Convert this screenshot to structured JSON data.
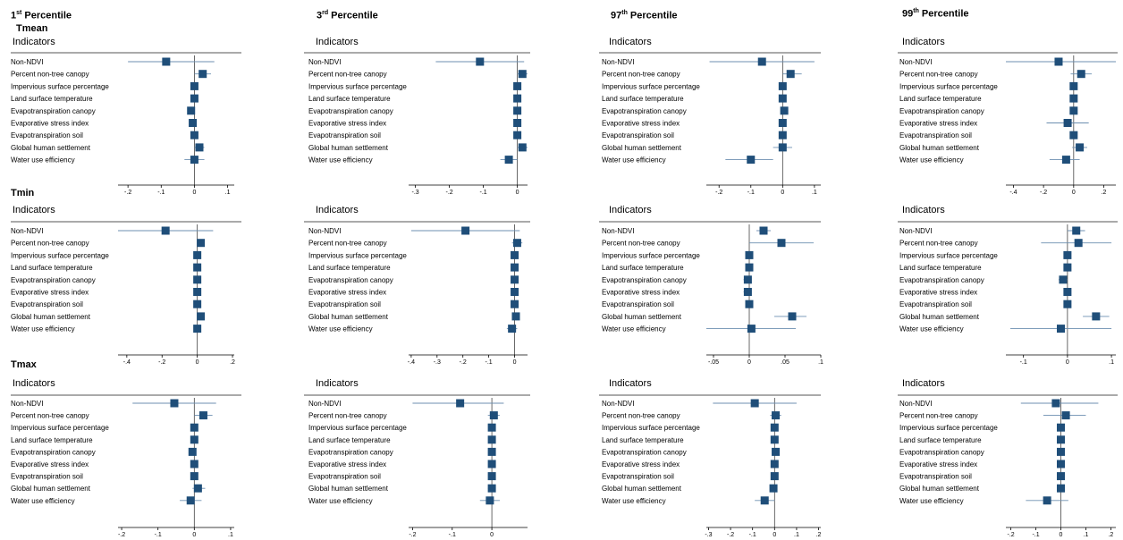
{
  "percentiles": [
    {
      "base": "1",
      "suffix": "st",
      "rest": " Percentile"
    },
    {
      "base": "3",
      "suffix": "rd",
      "rest": " Percentile"
    },
    {
      "base": "97",
      "suffix": "th",
      "rest": " Percentile"
    },
    {
      "base": "99",
      "suffix": "th",
      "rest": " Percentile"
    }
  ],
  "row_labels": [
    "Tmean",
    "Tmin",
    "Tmax"
  ],
  "panel_header": "Indicators",
  "indicators": [
    "Non-NDVI",
    "Percent non-tree canopy",
    "Impervious surface percentage",
    "Land surface temperature",
    "Evapotranspiration canopy",
    "Evaporative stress index",
    "Evapotranspiration soil",
    "Global human settlement",
    "Water use efficiency"
  ],
  "colors": {
    "marker": "#1f4e79",
    "ci_line": "#6d8fb0",
    "axis": "#000000",
    "header_rule": "#555555",
    "zero_line": "#444444"
  },
  "chart_data": [
    {
      "type": "forest",
      "row": "Tmean",
      "col": "1st Percentile",
      "xlim": [
        -0.23,
        0.12
      ],
      "ticks": [
        -0.2,
        -0.1,
        0,
        0.1
      ],
      "tick_labels": [
        "-.2",
        "-.1",
        "0",
        ".1"
      ],
      "estimates": [
        -0.085,
        0.025,
        0.0,
        0.0,
        -0.01,
        -0.005,
        0.0,
        0.015,
        0.0
      ],
      "ci_lower": [
        -0.2,
        0.0,
        -0.01,
        -0.01,
        -0.02,
        -0.015,
        -0.01,
        0.0,
        -0.03
      ],
      "ci_upper": [
        0.06,
        0.05,
        0.01,
        0.01,
        0.0,
        0.005,
        0.01,
        0.03,
        0.03
      ]
    },
    {
      "type": "forest",
      "row": "Tmean",
      "col": "3rd Percentile",
      "xlim": [
        -0.32,
        0.03
      ],
      "ticks": [
        -0.3,
        -0.2,
        -0.1,
        0
      ],
      "tick_labels": [
        "-.3",
        "-.2",
        "-.1",
        "0"
      ],
      "estimates": [
        -0.11,
        0.015,
        0.0,
        0.0,
        0.0,
        0.0,
        0.0,
        0.015,
        -0.025
      ],
      "ci_lower": [
        -0.24,
        0.0,
        -0.01,
        -0.01,
        -0.01,
        -0.01,
        -0.01,
        0.0,
        -0.05
      ],
      "ci_upper": [
        0.02,
        0.03,
        0.01,
        0.01,
        0.01,
        0.01,
        0.01,
        0.03,
        0.0
      ]
    },
    {
      "type": "forest",
      "row": "Tmean",
      "col": "97th Percentile",
      "xlim": [
        -0.24,
        0.12
      ],
      "ticks": [
        -0.2,
        -0.1,
        0,
        0.1
      ],
      "tick_labels": [
        "-.2",
        "-.1",
        "0",
        ".1"
      ],
      "estimates": [
        -0.065,
        0.025,
        0.0,
        0.0,
        0.005,
        0.0,
        0.0,
        0.0,
        -0.1
      ],
      "ci_lower": [
        -0.23,
        0.0,
        -0.005,
        -0.005,
        -0.005,
        -0.01,
        -0.005,
        -0.03,
        -0.18
      ],
      "ci_upper": [
        0.1,
        0.06,
        0.005,
        0.005,
        0.015,
        0.01,
        0.005,
        0.03,
        -0.03
      ]
    },
    {
      "type": "forest",
      "row": "Tmean",
      "col": "99th Percentile",
      "xlim": [
        -0.45,
        0.28
      ],
      "ticks": [
        -0.4,
        -0.2,
        0,
        0.2
      ],
      "tick_labels": [
        "-.4",
        "-.2",
        "0",
        ".2"
      ],
      "estimates": [
        -0.1,
        0.05,
        0.0,
        0.0,
        0.0,
        -0.04,
        0.0,
        0.04,
        -0.05
      ],
      "ci_lower": [
        -0.45,
        -0.02,
        -0.01,
        -0.01,
        -0.01,
        -0.18,
        -0.02,
        -0.01,
        -0.16
      ],
      "ci_upper": [
        0.28,
        0.12,
        0.01,
        0.01,
        0.01,
        0.1,
        0.02,
        0.09,
        0.04
      ]
    },
    {
      "type": "forest",
      "row": "Tmin",
      "col": "1st Percentile",
      "xlim": [
        -0.45,
        0.21
      ],
      "ticks": [
        -0.4,
        -0.2,
        0,
        0.2
      ],
      "tick_labels": [
        "-.4",
        "-.2",
        "0",
        ".2"
      ],
      "estimates": [
        -0.18,
        0.02,
        0.0,
        0.0,
        0.0,
        0.0,
        0.0,
        0.02,
        0.0
      ],
      "ci_lower": [
        -0.45,
        0.0,
        -0.01,
        -0.01,
        -0.01,
        -0.01,
        -0.01,
        0.0,
        -0.02
      ],
      "ci_upper": [
        0.09,
        0.04,
        0.01,
        0.01,
        0.01,
        0.01,
        0.01,
        0.04,
        0.02
      ]
    },
    {
      "type": "forest",
      "row": "Tmin",
      "col": "3rd Percentile",
      "xlim": [
        -0.41,
        0.05
      ],
      "ticks": [
        -0.4,
        -0.3,
        -0.2,
        -0.1,
        0
      ],
      "tick_labels": [
        "-.4",
        "-.3",
        "-.2",
        "-.1",
        "0"
      ],
      "estimates": [
        -0.19,
        0.01,
        0.0,
        0.0,
        0.0,
        0.0,
        0.0,
        0.005,
        -0.01
      ],
      "ci_lower": [
        -0.4,
        -0.01,
        -0.01,
        -0.01,
        -0.01,
        -0.01,
        -0.01,
        -0.01,
        -0.03
      ],
      "ci_upper": [
        0.02,
        0.03,
        0.01,
        0.01,
        0.01,
        0.01,
        0.01,
        0.02,
        0.01
      ]
    },
    {
      "type": "forest",
      "row": "Tmin",
      "col": "97th Percentile",
      "xlim": [
        -0.06,
        0.1
      ],
      "ticks": [
        -0.05,
        0,
        0.05,
        0.1
      ],
      "tick_labels": [
        "-.05",
        "0",
        ".05",
        ".1"
      ],
      "estimates": [
        0.02,
        0.045,
        0.0,
        0.0,
        -0.002,
        -0.002,
        0.0,
        0.06,
        0.003
      ],
      "ci_lower": [
        0.01,
        0.0,
        -0.005,
        -0.005,
        -0.008,
        -0.008,
        -0.005,
        0.035,
        -0.06
      ],
      "ci_upper": [
        0.03,
        0.09,
        0.005,
        0.005,
        0.003,
        0.003,
        0.005,
        0.08,
        0.065
      ]
    },
    {
      "type": "forest",
      "row": "Tmin",
      "col": "99th Percentile",
      "xlim": [
        -0.14,
        0.11
      ],
      "ticks": [
        -0.1,
        0,
        0.1
      ],
      "tick_labels": [
        "-.1",
        "0",
        ".1"
      ],
      "estimates": [
        0.02,
        0.025,
        0.0,
        0.0,
        -0.01,
        0.0,
        0.0,
        0.065,
        -0.015
      ],
      "ci_lower": [
        0.0,
        -0.06,
        -0.005,
        -0.005,
        -0.02,
        -0.005,
        -0.005,
        0.035,
        -0.13
      ],
      "ci_upper": [
        0.04,
        0.1,
        0.005,
        0.005,
        0.0,
        0.005,
        0.005,
        0.095,
        0.1
      ]
    },
    {
      "type": "forest",
      "row": "Tmax",
      "col": "1st Percentile",
      "xlim": [
        -0.21,
        0.11
      ],
      "ticks": [
        -0.2,
        -0.1,
        0,
        0.1
      ],
      "tick_labels": [
        "-.2",
        "-.1",
        "0",
        ".1"
      ],
      "estimates": [
        -0.055,
        0.025,
        0.0,
        0.0,
        -0.005,
        0.0,
        0.0,
        0.01,
        -0.01
      ],
      "ci_lower": [
        -0.17,
        0.0,
        -0.01,
        -0.01,
        -0.015,
        -0.01,
        -0.01,
        -0.005,
        -0.04
      ],
      "ci_upper": [
        0.06,
        0.05,
        0.01,
        0.01,
        0.005,
        0.01,
        0.01,
        0.03,
        0.02
      ]
    },
    {
      "type": "forest",
      "row": "Tmax",
      "col": "3rd Percentile",
      "xlim": [
        -0.21,
        0.09
      ],
      "ticks": [
        -0.2,
        -0.1,
        0
      ],
      "tick_labels": [
        "-.2",
        "-.1",
        "0"
      ],
      "estimates": [
        -0.08,
        0.005,
        0.0,
        0.0,
        0.0,
        0.0,
        0.0,
        0.0,
        -0.005
      ],
      "ci_lower": [
        -0.2,
        -0.01,
        -0.005,
        -0.005,
        -0.005,
        -0.005,
        -0.005,
        -0.01,
        -0.03
      ],
      "ci_upper": [
        0.03,
        0.02,
        0.005,
        0.005,
        0.005,
        0.005,
        0.005,
        0.01,
        0.02
      ]
    },
    {
      "type": "forest",
      "row": "Tmax",
      "col": "97th Percentile",
      "xlim": [
        -0.31,
        0.21
      ],
      "ticks": [
        -0.3,
        -0.2,
        -0.1,
        0,
        0.1,
        0.2
      ],
      "tick_labels": [
        "-.3",
        "-.2",
        "-.1",
        "0",
        ".1",
        ".2"
      ],
      "estimates": [
        -0.09,
        0.005,
        0.0,
        0.0,
        0.005,
        0.0,
        0.0,
        -0.005,
        -0.045
      ],
      "ci_lower": [
        -0.28,
        -0.02,
        -0.01,
        -0.01,
        -0.005,
        -0.01,
        -0.01,
        -0.02,
        -0.09
      ],
      "ci_upper": [
        0.1,
        0.03,
        0.01,
        0.01,
        0.015,
        0.01,
        0.01,
        0.01,
        0.0
      ]
    },
    {
      "type": "forest",
      "row": "Tmax",
      "col": "99th Percentile",
      "xlim": [
        -0.22,
        0.22
      ],
      "ticks": [
        -0.2,
        -0.1,
        0,
        0.1,
        0.2
      ],
      "tick_labels": [
        "-.2",
        "-.1",
        "0",
        ".1",
        ".2"
      ],
      "estimates": [
        -0.02,
        0.02,
        0.0,
        0.0,
        0.0,
        0.0,
        0.0,
        0.0,
        -0.055
      ],
      "ci_lower": [
        -0.16,
        -0.07,
        -0.01,
        -0.01,
        -0.01,
        -0.01,
        -0.01,
        -0.01,
        -0.14
      ],
      "ci_upper": [
        0.15,
        0.1,
        0.01,
        0.01,
        0.01,
        0.01,
        0.01,
        0.01,
        0.03
      ]
    }
  ]
}
